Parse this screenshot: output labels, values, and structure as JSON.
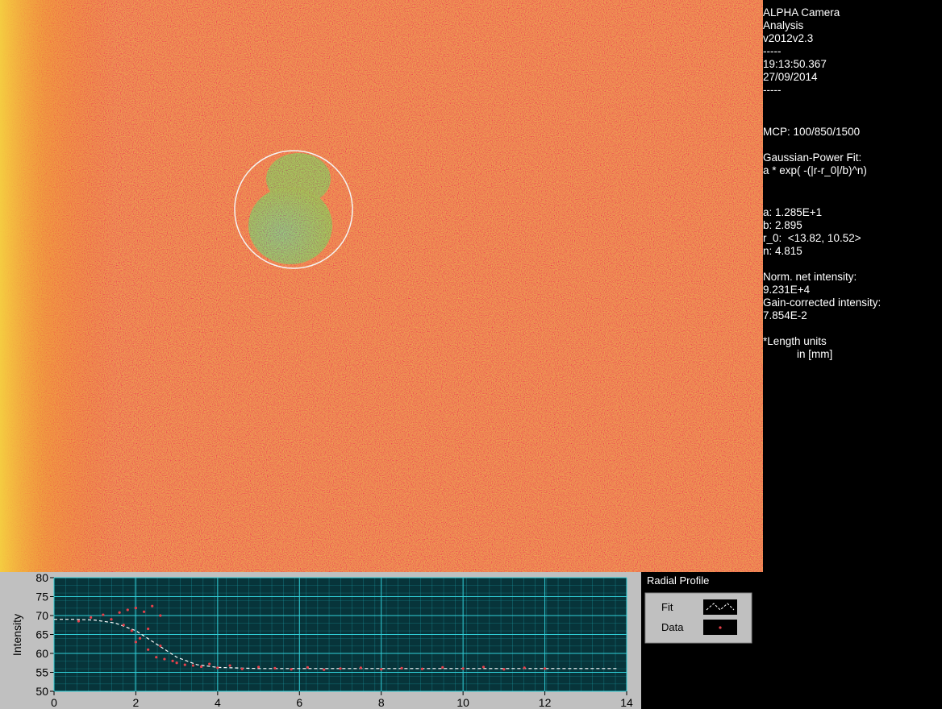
{
  "info_panel": {
    "app_name": "ALPHA Camera",
    "app_name_2": "Analysis",
    "version": "v2012v2.3",
    "separator_1": "-----",
    "time": "19:13:50.367",
    "date": "27/09/2014",
    "separator_2": "-----",
    "mcp": "MCP: 100/850/1500",
    "fit_title": "Gaussian-Power Fit:",
    "formula": "a * exp( -(|r-r_0|/b)^n)",
    "param_a": "a: 1.285E+1",
    "param_b": "b: 2.895",
    "param_r0": "r_0:  <13.82, 10.52>",
    "param_n": "n: 4.815",
    "norm_label": "Norm. net intensity:",
    "norm_value": "9.231E+4",
    "gain_label": "Gain-corrected intensity:",
    "gain_value": "7.854E-2",
    "note_1": "*Length units",
    "note_2": "in [mm]"
  },
  "chart_data": {
    "type": "line",
    "title": "Radial Profile",
    "y_label": "Intensity",
    "xlim": [
      0,
      14
    ],
    "ylim": [
      50,
      80
    ],
    "xticks": [
      0,
      2,
      4,
      6,
      8,
      10,
      12,
      14
    ],
    "yticks": [
      50,
      55,
      60,
      65,
      70,
      75,
      80
    ],
    "grid": true,
    "series": [
      {
        "name": "Fit",
        "color": "#ffffff",
        "mode": "dashed-line",
        "x": [
          0,
          0.5,
          1,
          1.5,
          2,
          2.5,
          3,
          3.5,
          4,
          5,
          6,
          8,
          10,
          12,
          13.8
        ],
        "values": [
          69,
          69,
          68.8,
          68,
          66,
          62.5,
          59,
          57,
          56.3,
          56,
          56,
          56,
          56,
          56,
          56
        ]
      },
      {
        "name": "Data",
        "color": "#e8404a",
        "mode": "markers",
        "x": [
          0.6,
          0.9,
          1.2,
          1.4,
          1.6,
          1.8,
          1.9,
          2.0,
          2.1,
          2.2,
          2.3,
          2.4,
          2.5,
          2.6,
          2.7,
          1.7,
          2.0,
          2.3,
          2.6,
          2.9,
          3.0,
          3.2,
          3.4,
          3.6,
          3.8,
          4.0,
          4.3,
          4.6,
          5.0,
          5.4,
          5.8,
          6.2,
          6.6,
          7.0,
          7.5,
          8.0,
          8.5,
          9.0,
          9.5,
          10.0,
          10.5,
          11.0,
          11.5,
          12.0
        ],
        "values": [
          68.5,
          69.5,
          70.2,
          69,
          70.8,
          71.5,
          66,
          72,
          64,
          71,
          61,
          72.5,
          59,
          70,
          58.5,
          67.5,
          63,
          66.5,
          62,
          58,
          57.5,
          57,
          56.8,
          56.5,
          57.2,
          56.2,
          56.8,
          55.9,
          56.4,
          56.1,
          55.8,
          56.3,
          55.7,
          56,
          56.2,
          55.8,
          56.1,
          55.9,
          56.3,
          56,
          56.4,
          55.8,
          56.2,
          56
        ]
      }
    ]
  }
}
